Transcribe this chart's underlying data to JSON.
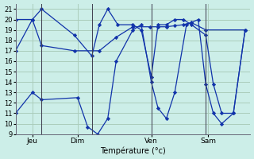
{
  "bg_color": "#cceee8",
  "grid_color": "#aaccbb",
  "plot_bg": "#cceee8",
  "line_color": "#1133aa",
  "marker_color": "#1133aa",
  "xlabel": "Température (°c)",
  "ylim": [
    9,
    21.5
  ],
  "yticks": [
    9,
    10,
    11,
    12,
    13,
    14,
    15,
    16,
    17,
    18,
    19,
    20,
    21
  ],
  "xlim": [
    0,
    14.0
  ],
  "vlines": [
    1.55,
    4.55,
    8.1,
    11.35
  ],
  "x_tick_pos": [
    1.0,
    3.7,
    8.1,
    11.5
  ],
  "x_tick_labels": [
    "Jeu",
    "Dim",
    "Ven",
    "Sam"
  ],
  "series": [
    {
      "x": [
        0.0,
        1.0,
        1.55,
        3.7,
        4.3,
        4.9,
        5.5,
        6.0,
        7.0,
        7.5,
        8.1,
        8.5,
        9.0,
        9.5,
        10.2,
        10.9,
        11.35,
        11.8,
        12.3,
        13.0,
        13.7
      ],
      "y": [
        11,
        13,
        12.3,
        12.5,
        9.7,
        9.0,
        10.5,
        16.0,
        19.0,
        19.5,
        14.0,
        11.5,
        10.5,
        13.0,
        19.5,
        20.0,
        13.8,
        11.0,
        10.0,
        11.0,
        19.0
      ]
    },
    {
      "x": [
        0.0,
        1.0,
        1.55,
        3.5,
        4.55,
        5.0,
        5.5,
        6.1,
        7.0,
        7.5,
        8.1,
        8.5,
        9.0,
        9.5,
        10.0,
        10.5,
        11.35,
        11.8,
        12.3,
        13.0,
        13.7
      ],
      "y": [
        20.0,
        20.0,
        21.0,
        18.5,
        16.5,
        19.5,
        21.0,
        19.5,
        19.5,
        19.0,
        14.5,
        19.5,
        19.5,
        20.0,
        20.0,
        19.5,
        18.5,
        13.8,
        11.0,
        11.0,
        19.0
      ]
    },
    {
      "x": [
        0.0,
        1.0,
        1.55,
        3.5,
        5.0,
        6.0,
        7.0,
        8.0,
        8.5,
        9.0,
        9.5,
        10.0,
        10.5,
        11.35,
        13.7
      ],
      "y": [
        17.0,
        20.0,
        17.5,
        17.0,
        17.0,
        18.3,
        19.3,
        19.3,
        19.3,
        19.3,
        19.4,
        19.5,
        19.7,
        19.0,
        19.0
      ]
    }
  ]
}
